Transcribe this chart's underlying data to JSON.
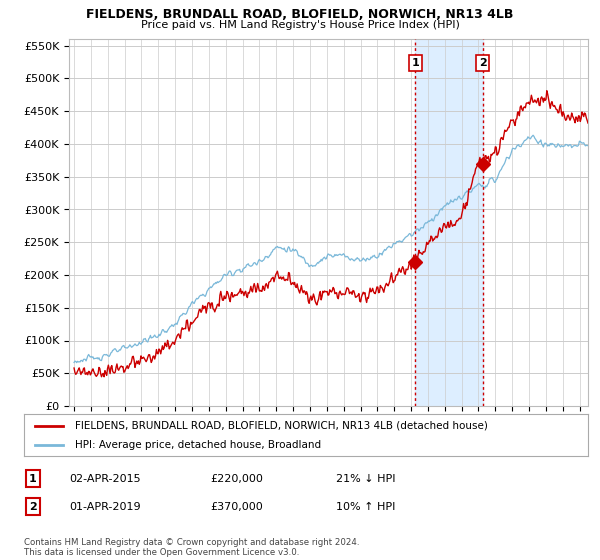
{
  "title": "FIELDENS, BRUNDALL ROAD, BLOFIELD, NORWICH, NR13 4LB",
  "subtitle": "Price paid vs. HM Land Registry's House Price Index (HPI)",
  "legend_line1": "FIELDENS, BRUNDALL ROAD, BLOFIELD, NORWICH, NR13 4LB (detached house)",
  "legend_line2": "HPI: Average price, detached house, Broadland",
  "annotation1_label": "1",
  "annotation1_date": "02-APR-2015",
  "annotation1_price": "£220,000",
  "annotation1_hpi": "21% ↓ HPI",
  "annotation2_label": "2",
  "annotation2_date": "01-APR-2019",
  "annotation2_price": "£370,000",
  "annotation2_hpi": "10% ↑ HPI",
  "footer": "Contains HM Land Registry data © Crown copyright and database right 2024.\nThis data is licensed under the Open Government Licence v3.0.",
  "sale1_year": 2015.25,
  "sale1_value": 220000,
  "sale2_year": 2019.25,
  "sale2_value": 370000,
  "hpi_color": "#7ab8d9",
  "price_color": "#cc0000",
  "shading_color": "#ddeeff",
  "vline_color": "#cc0000",
  "ylim_min": 0,
  "ylim_max": 560000,
  "ytick_step": 50000,
  "background_color": "#ffffff",
  "grid_color": "#cccccc"
}
